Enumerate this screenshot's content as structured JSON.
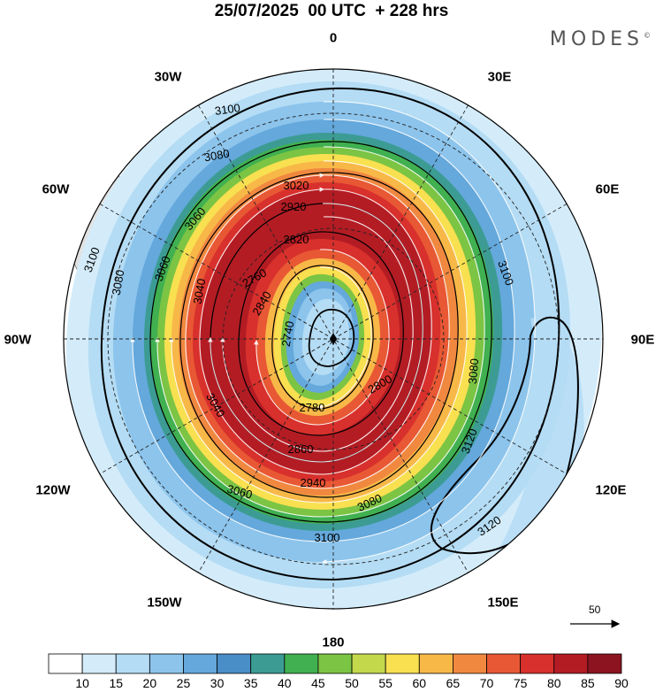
{
  "title": "25/07/2025  00 UTC  + 228 hrs",
  "brand": "MODES",
  "brand_mark": "©",
  "longitude_labels": {
    "lon_0": "0",
    "lon_30e": "30E",
    "lon_60e": "60E",
    "lon_90e": "90E",
    "lon_120e": "120E",
    "lon_150e": "150E",
    "lon_180": "180",
    "lon_150w": "150W",
    "lon_120w": "120W",
    "lon_90w": "90W",
    "lon_60w": "60W",
    "lon_30w": "30W"
  },
  "vector_scale": {
    "label": "50"
  },
  "colorbar": {
    "ticks": [
      "10",
      "15",
      "20",
      "25",
      "30",
      "35",
      "40",
      "45",
      "50",
      "55",
      "60",
      "65",
      "70",
      "75",
      "80",
      "85",
      "90"
    ],
    "colors": [
      "#ffffff",
      "#d4ecfa",
      "#b4dcf4",
      "#8cc4ec",
      "#64a8dc",
      "#4a8ec8",
      "#3c9c94",
      "#40b050",
      "#7cc444",
      "#c4d84c",
      "#f8e050",
      "#f8b848",
      "#f08840",
      "#e85834",
      "#d8302c",
      "#b41c24",
      "#8c1420"
    ]
  },
  "contour_labels": [
    "3100",
    "3080",
    "3060",
    "3040",
    "3020",
    "2920",
    "2820",
    "2760",
    "2740",
    "2840",
    "3060",
    "3100",
    "3080",
    "3120",
    "3120",
    "3100",
    "3080",
    "3060",
    "3040",
    "2800",
    "2780",
    "2860",
    "2940",
    "3080",
    "3100"
  ]
}
